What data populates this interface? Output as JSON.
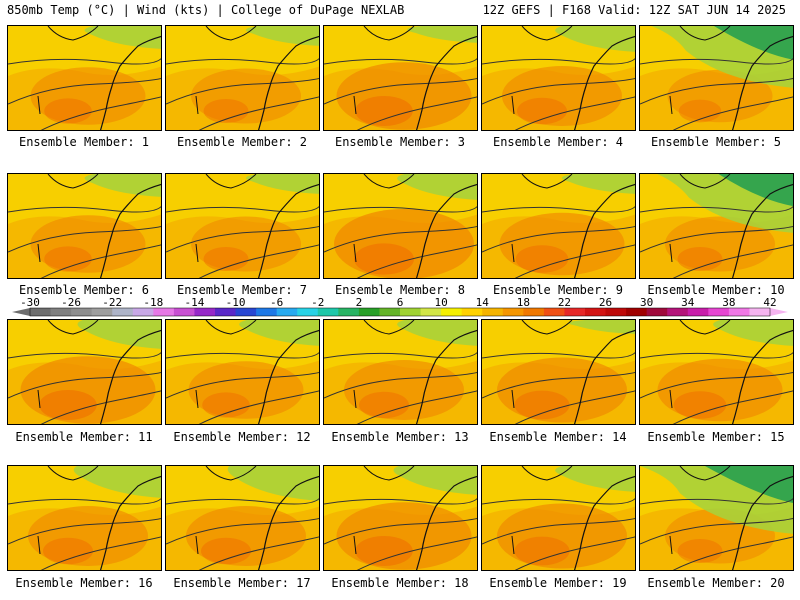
{
  "header": {
    "left": "850mb Temp (°C) | Wind (kts) | College of DuPage NEXLAB",
    "right": "12Z GEFS | F168 Valid: 12Z SAT JUN 14 2025"
  },
  "colorbar": {
    "tick_labels": [
      "-30",
      "-26",
      "-22",
      "-18",
      "-14",
      "-10",
      "-6",
      "-2",
      "2",
      "6",
      "10",
      "14",
      "18",
      "22",
      "26",
      "30",
      "34",
      "38",
      "42"
    ],
    "colors": [
      "#6e6e6e",
      "#808080",
      "#8e8e8e",
      "#9e9e9e",
      "#aeb4c8",
      "#c8a8e6",
      "#e678e6",
      "#c850d2",
      "#9628c8",
      "#5a28c8",
      "#2846d2",
      "#1e78e6",
      "#28aaf0",
      "#28d2e6",
      "#1ec8aa",
      "#28b464",
      "#28a028",
      "#64b428",
      "#a0d232",
      "#d2e646",
      "#f5f000",
      "#ffd200",
      "#f5b400",
      "#f59600",
      "#f07800",
      "#f05014",
      "#e62828",
      "#d21414",
      "#be0a0a",
      "#a00000",
      "#a00a3c",
      "#b4147a",
      "#c81eaa",
      "#e646d2",
      "#f078e6",
      "#f5b4f0"
    ]
  },
  "panels": [
    {
      "label": "Ensemble Member: 1",
      "green_level": 0.25,
      "warm_level": 0.55
    },
    {
      "label": "Ensemble Member: 2",
      "green_level": 0.2,
      "warm_level": 0.5
    },
    {
      "label": "Ensemble Member: 3",
      "green_level": 0.15,
      "warm_level": 0.75
    },
    {
      "label": "Ensemble Member: 4",
      "green_level": 0.3,
      "warm_level": 0.6
    },
    {
      "label": "Ensemble Member: 5",
      "green_level": 0.9,
      "warm_level": 0.45
    },
    {
      "label": "Ensemble Member: 6",
      "green_level": 0.25,
      "warm_level": 0.55
    },
    {
      "label": "Ensemble Member: 7",
      "green_level": 0.2,
      "warm_level": 0.5
    },
    {
      "label": "Ensemble Member: 8",
      "green_level": 0.3,
      "warm_level": 0.8
    },
    {
      "label": "Ensemble Member: 9",
      "green_level": 0.2,
      "warm_level": 0.65
    },
    {
      "label": "Ensemble Member: 10",
      "green_level": 0.85,
      "warm_level": 0.5
    },
    {
      "label": "Ensemble Member: 11",
      "green_level": 0.35,
      "warm_level": 0.75
    },
    {
      "label": "Ensemble Member: 12",
      "green_level": 0.3,
      "warm_level": 0.55
    },
    {
      "label": "Ensemble Member: 13",
      "green_level": 0.3,
      "warm_level": 0.6
    },
    {
      "label": "Ensemble Member: 14",
      "green_level": 0.1,
      "warm_level": 0.7
    },
    {
      "label": "Ensemble Member: 15",
      "green_level": 0.3,
      "warm_level": 0.65
    },
    {
      "label": "Ensemble Member: 16",
      "green_level": 0.4,
      "warm_level": 0.6
    },
    {
      "label": "Ensemble Member: 17",
      "green_level": 0.45,
      "warm_level": 0.6
    },
    {
      "label": "Ensemble Member: 18",
      "green_level": 0.35,
      "warm_level": 0.75
    },
    {
      "label": "Ensemble Member: 19",
      "green_level": 0.3,
      "warm_level": 0.7
    },
    {
      "label": "Ensemble Member: 20",
      "green_level": 1.0,
      "warm_level": 0.5
    }
  ]
}
